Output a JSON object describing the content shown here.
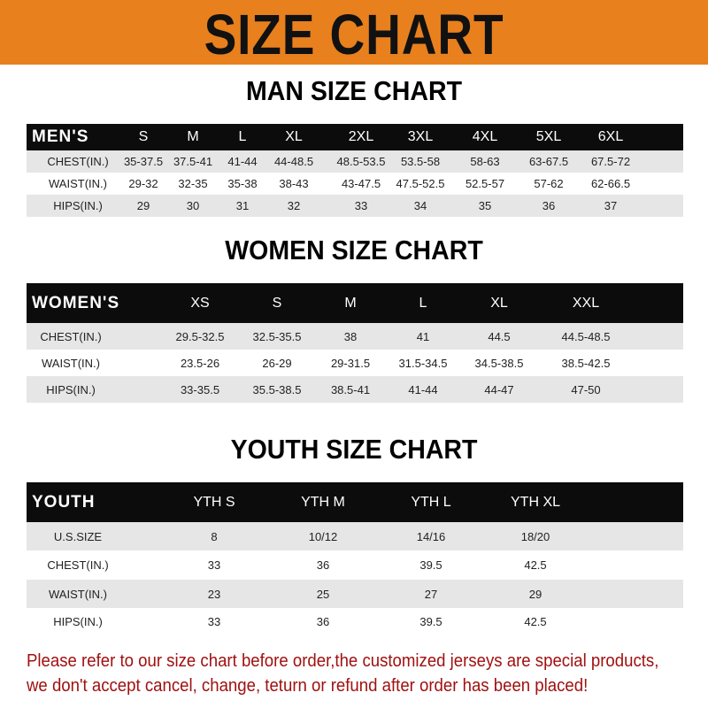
{
  "banner_title": "SIZE CHART",
  "colors": {
    "banner": "#e8801e",
    "header_row": "#0c0c0c",
    "shaded_row": "#e6e6e6",
    "notice_text": "#a01010"
  },
  "men": {
    "title": "MAN SIZE CHART",
    "header": [
      "MEN'S",
      "S",
      "M",
      "L",
      "XL",
      "2XL",
      "3XL",
      "4XL",
      "5XL",
      "6XL"
    ],
    "rows": [
      [
        "CHEST(IN.)",
        "35-37.5",
        "37.5-41",
        "41-44",
        "44-48.5",
        "48.5-53.5",
        "53.5-58",
        "58-63",
        "63-67.5",
        "67.5-72"
      ],
      [
        "WAIST(IN.)",
        "29-32",
        "32-35",
        "35-38",
        "38-43",
        "43-47.5",
        "47.5-52.5",
        "52.5-57",
        "57-62",
        "62-66.5"
      ],
      [
        "HIPS(IN.)",
        "29",
        "30",
        "31",
        "32",
        "33",
        "34",
        "35",
        "36",
        "37"
      ]
    ]
  },
  "women": {
    "title": "WOMEN SIZE CHART",
    "header": [
      "WOMEN'S",
      "XS",
      "S",
      "M",
      "L",
      "XL",
      "XXL"
    ],
    "rows": [
      [
        "CHEST(IN.)",
        "29.5-32.5",
        "32.5-35.5",
        "38",
        "41",
        "44.5",
        "44.5-48.5"
      ],
      [
        "WAIST(IN.)",
        "23.5-26",
        "26-29",
        "29-31.5",
        "31.5-34.5",
        "34.5-38.5",
        "38.5-42.5"
      ],
      [
        "HIPS(IN.)",
        "33-35.5",
        "35.5-38.5",
        "38.5-41",
        "41-44",
        "44-47",
        "47-50"
      ]
    ]
  },
  "youth": {
    "title": "YOUTH SIZE CHART",
    "header": [
      "YOUTH",
      "YTH S",
      "YTH M",
      "YTH L",
      "YTH XL"
    ],
    "rows": [
      [
        "U.S.SIZE",
        "8",
        "10/12",
        "14/16",
        "18/20"
      ],
      [
        "CHEST(IN.)",
        "33",
        "36",
        "39.5",
        "42.5"
      ],
      [
        "WAIST(IN.)",
        "23",
        "25",
        "27",
        "29"
      ],
      [
        "HIPS(IN.)",
        "33",
        "36",
        "39.5",
        "42.5"
      ]
    ]
  },
  "notice": {
    "line1": "Please refer to our size chart before order,the customized jerseys are special products,",
    "line2": "we don't accept cancel, change, teturn or refund after order has been placed!"
  }
}
